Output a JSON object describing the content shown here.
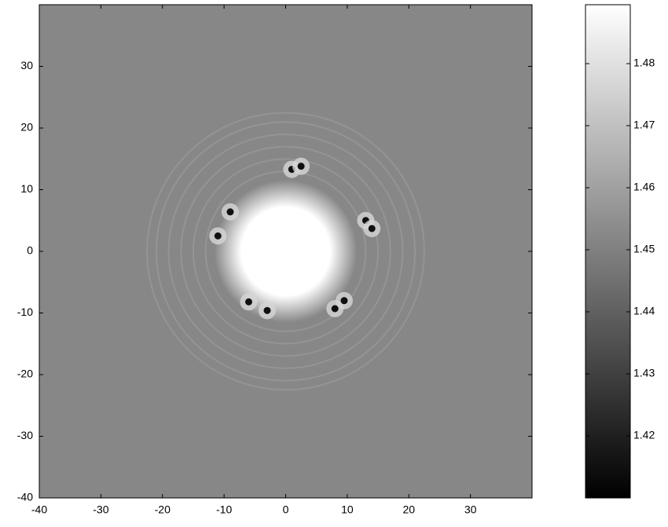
{
  "chart_data": {
    "type": "heatmap",
    "xlim": [
      -40,
      40
    ],
    "ylim": [
      -40,
      40
    ],
    "xticks": [
      -40,
      -30,
      -20,
      -10,
      0,
      10,
      20,
      30
    ],
    "yticks": [
      -40,
      -30,
      -20,
      -10,
      0,
      10,
      20,
      30
    ],
    "colormap": "gray",
    "clim": [
      1.41,
      1.4895
    ],
    "cticks": [
      1.42,
      1.43,
      1.44,
      1.45,
      1.46,
      1.47,
      1.48
    ],
    "background": 1.452,
    "center": {
      "x": 0,
      "y": 0,
      "radius": 8,
      "value": 1.4895
    },
    "rings": {
      "radii": [
        13,
        15,
        17,
        19,
        21,
        22.5
      ],
      "value": 1.458
    },
    "spots": {
      "x": [
        1,
        2.5,
        -9,
        -11,
        13,
        14,
        -6,
        -3,
        8,
        9.5
      ],
      "y": [
        13.3,
        13.8,
        6.4,
        2.5,
        5,
        3.7,
        -8.2,
        -9.6,
        -9.3,
        -8
      ],
      "value": 1.415
    }
  }
}
